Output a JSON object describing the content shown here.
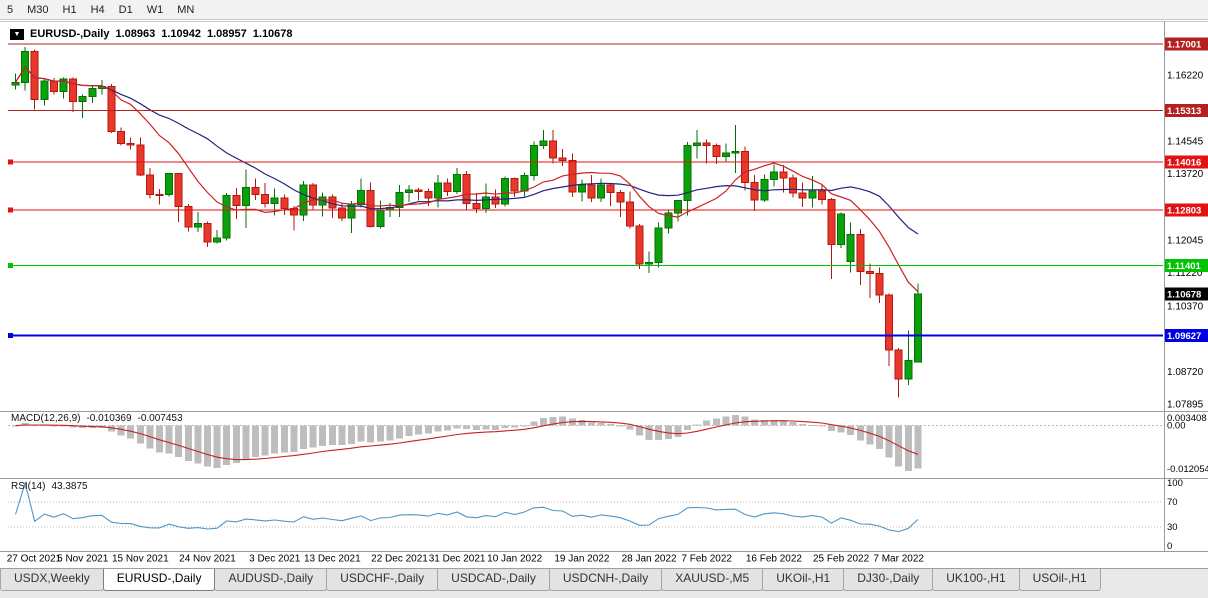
{
  "toolbar": {
    "timeframes": [
      "5",
      "M30",
      "H1",
      "H4",
      "D1",
      "W1",
      "MN"
    ]
  },
  "chart_title": {
    "symbol": "EURUSD-,Daily",
    "open": "1.08963",
    "high": "1.10942",
    "low": "1.08957",
    "close": "1.10678"
  },
  "macd_label": {
    "name": "MACD(12,26,9)",
    "main": "-0.010369",
    "signal": "-0.007453"
  },
  "rsi_label": {
    "name": "RSI(14)",
    "value": "43.3875"
  },
  "tabs": [
    {
      "label": "USDX,Weekly",
      "active": false
    },
    {
      "label": "EURUSD-,Daily",
      "active": true
    },
    {
      "label": "AUDUSD-,Daily",
      "active": false
    },
    {
      "label": "USDCHF-,Daily",
      "active": false
    },
    {
      "label": "USDCAD-,Daily",
      "active": false
    },
    {
      "label": "USDCNH-,Daily",
      "active": false
    },
    {
      "label": "XAUUSD-,M5",
      "active": false
    },
    {
      "label": "UKOil-,H1",
      "active": false
    },
    {
      "label": "DJ30-,Daily",
      "active": false
    },
    {
      "label": "UK100-,H1",
      "active": false
    },
    {
      "label": "USOil-,H1",
      "active": false
    }
  ],
  "chart_data": {
    "type": "candlestick",
    "title": "EURUSD-,Daily",
    "y_axis_range": [
      1.07743,
      1.17406
    ],
    "colors": {
      "up": "#0aa10a",
      "up_stroke": "#056e05",
      "down": "#e8372b",
      "down_stroke": "#b5170c"
    },
    "y_ticks": [
      {
        "text": "1.16220",
        "value": 1.1622
      },
      {
        "text": "1.14545",
        "value": 1.14545
      },
      {
        "text": "1.13720",
        "value": 1.1372
      },
      {
        "text": "1.12045",
        "value": 1.12045
      },
      {
        "text": "1.11220",
        "value": 1.1122
      },
      {
        "text": "1.10370",
        "value": 1.1037
      },
      {
        "text": "1.08720",
        "value": 1.0872
      },
      {
        "text": "1.07895",
        "value": 1.07895
      }
    ],
    "level_lines": [
      {
        "text": "1.17001",
        "value": 1.17001,
        "color": "#b52121",
        "width": 1,
        "marker": false
      },
      {
        "text": "1.15313",
        "value": 1.15313,
        "color": "#b52121",
        "width": 1,
        "marker": false
      },
      {
        "text": "1.14016",
        "value": 1.14016,
        "color": "#e31212",
        "width": 1,
        "marker": true
      },
      {
        "text": "1.12803",
        "value": 1.12803,
        "color": "#e31212",
        "width": 1,
        "marker": true
      },
      {
        "text": "1.11401",
        "value": 1.11401,
        "color": "#00c400",
        "width": 1,
        "marker": true
      },
      {
        "text": "1.09627",
        "value": 1.09627,
        "color": "#0000e0",
        "width": 2,
        "marker": true
      }
    ],
    "current_price": {
      "text": "1.10678",
      "value": 1.10678,
      "color": "#000000"
    },
    "x_ticks": [
      {
        "text": "27 Oct 2021",
        "index": 0
      },
      {
        "text": "5 Nov 2021",
        "index": 7
      },
      {
        "text": "15 Nov 2021",
        "index": 13
      },
      {
        "text": "24 Nov 2021",
        "index": 20
      },
      {
        "text": "3 Dec 2021",
        "index": 27
      },
      {
        "text": "13 Dec 2021",
        "index": 33
      },
      {
        "text": "22 Dec 2021",
        "index": 40
      },
      {
        "text": "31 Dec 2021",
        "index": 46
      },
      {
        "text": "10 Jan 2022",
        "index": 52
      },
      {
        "text": "19 Jan 2022",
        "index": 59
      },
      {
        "text": "28 Jan 2022",
        "index": 66
      },
      {
        "text": "7 Feb 2022",
        "index": 72
      },
      {
        "text": "16 Feb 2022",
        "index": 79
      },
      {
        "text": "25 Feb 2022",
        "index": 86
      },
      {
        "text": "7 Mar 2022",
        "index": 92
      }
    ],
    "overlays": [
      {
        "name": "ma-slow",
        "type": "sma",
        "period": 21,
        "color": "#24247f"
      },
      {
        "name": "ma-fast",
        "type": "sma",
        "period": 10,
        "color": "#cc2222"
      }
    ],
    "macd": {
      "fast": 12,
      "slow": 26,
      "signal_period": 9,
      "histogram_color": "#bdbdbd",
      "signal_color": "#c82020",
      "axis_labels": [
        "0.003408",
        "0.00",
        "-0.012054"
      ]
    },
    "rsi": {
      "period": 14,
      "color": "#4e96c8",
      "axis_labels": [
        "100",
        "70",
        "30",
        "0"
      ],
      "levels": [
        70,
        30
      ]
    },
    "candles": [
      [
        "2021-10-27",
        1.1596,
        1.1626,
        1.1585,
        1.1603
      ],
      [
        "2021-10-28",
        1.1603,
        1.1692,
        1.1582,
        1.1681
      ],
      [
        "2021-10-29",
        1.1681,
        1.1686,
        1.1535,
        1.156
      ],
      [
        "2021-11-01",
        1.156,
        1.161,
        1.1545,
        1.1606
      ],
      [
        "2021-11-02",
        1.1606,
        1.1614,
        1.1573,
        1.158
      ],
      [
        "2021-11-03",
        1.158,
        1.1616,
        1.1562,
        1.1611
      ],
      [
        "2021-11-04",
        1.1611,
        1.1616,
        1.1528,
        1.1555
      ],
      [
        "2021-11-05",
        1.1555,
        1.1573,
        1.1513,
        1.1567
      ],
      [
        "2021-11-08",
        1.1567,
        1.1594,
        1.1551,
        1.1588
      ],
      [
        "2021-11-09",
        1.1588,
        1.1609,
        1.1572,
        1.1593
      ],
      [
        "2021-11-10",
        1.1593,
        1.1599,
        1.1475,
        1.1479
      ],
      [
        "2021-11-11",
        1.1479,
        1.1489,
        1.1443,
        1.1449
      ],
      [
        "2021-11-12",
        1.1449,
        1.1464,
        1.1433,
        1.1445
      ],
      [
        "2021-11-15",
        1.1445,
        1.1464,
        1.1366,
        1.1369
      ],
      [
        "2021-11-16",
        1.1369,
        1.1386,
        1.1309,
        1.132
      ],
      [
        "2021-11-17",
        1.132,
        1.1333,
        1.1294,
        1.1319
      ],
      [
        "2021-11-18",
        1.1319,
        1.1374,
        1.1314,
        1.1372
      ],
      [
        "2021-11-19",
        1.1372,
        1.1374,
        1.125,
        1.1289
      ],
      [
        "2021-11-22",
        1.1289,
        1.1296,
        1.1226,
        1.1237
      ],
      [
        "2021-11-23",
        1.1237,
        1.1275,
        1.1225,
        1.1246
      ],
      [
        "2021-11-24",
        1.1246,
        1.1251,
        1.1186,
        1.1199
      ],
      [
        "2021-11-25",
        1.1199,
        1.123,
        1.1195,
        1.1209
      ],
      [
        "2021-11-26",
        1.1209,
        1.1323,
        1.1203,
        1.1317
      ],
      [
        "2021-11-29",
        1.1317,
        1.1336,
        1.1258,
        1.1292
      ],
      [
        "2021-11-30",
        1.1292,
        1.1383,
        1.1235,
        1.1337
      ],
      [
        "2021-12-01",
        1.1337,
        1.136,
        1.1305,
        1.1319
      ],
      [
        "2021-12-02",
        1.1319,
        1.1348,
        1.1287,
        1.1297
      ],
      [
        "2021-12-03",
        1.1297,
        1.1334,
        1.1266,
        1.1311
      ],
      [
        "2021-12-06",
        1.1311,
        1.132,
        1.1267,
        1.1284
      ],
      [
        "2021-12-07",
        1.1284,
        1.129,
        1.1228,
        1.1267
      ],
      [
        "2021-12-08",
        1.1267,
        1.1354,
        1.1252,
        1.1344
      ],
      [
        "2021-12-09",
        1.1344,
        1.1348,
        1.128,
        1.1293
      ],
      [
        "2021-12-10",
        1.1293,
        1.1324,
        1.1264,
        1.1313
      ],
      [
        "2021-12-13",
        1.1313,
        1.1319,
        1.126,
        1.1285
      ],
      [
        "2021-12-14",
        1.1285,
        1.1298,
        1.1253,
        1.126
      ],
      [
        "2021-12-15",
        1.126,
        1.1303,
        1.1222,
        1.1294
      ],
      [
        "2021-12-16",
        1.1294,
        1.136,
        1.1286,
        1.133
      ],
      [
        "2021-12-17",
        1.133,
        1.135,
        1.1236,
        1.1238
      ],
      [
        "2021-12-20",
        1.1238,
        1.1304,
        1.1234,
        1.128
      ],
      [
        "2021-12-21",
        1.128,
        1.1298,
        1.1262,
        1.1287
      ],
      [
        "2021-12-22",
        1.1287,
        1.1343,
        1.1263,
        1.1325
      ],
      [
        "2021-12-23",
        1.1325,
        1.1344,
        1.13,
        1.1331
      ],
      [
        "2021-12-27",
        1.1331,
        1.1336,
        1.1304,
        1.1327
      ],
      [
        "2021-12-28",
        1.1327,
        1.1334,
        1.129,
        1.131
      ],
      [
        "2021-12-29",
        1.131,
        1.1369,
        1.1286,
        1.1348
      ],
      [
        "2021-12-30",
        1.1348,
        1.136,
        1.1316,
        1.1327
      ],
      [
        "2021-12-31",
        1.1327,
        1.1386,
        1.1321,
        1.137
      ],
      [
        "2022-01-03",
        1.137,
        1.1379,
        1.1279,
        1.1297
      ],
      [
        "2022-01-04",
        1.1297,
        1.1323,
        1.1272,
        1.1284
      ],
      [
        "2022-01-05",
        1.1284,
        1.1347,
        1.1272,
        1.1313
      ],
      [
        "2022-01-06",
        1.1313,
        1.1332,
        1.1285,
        1.1295
      ],
      [
        "2022-01-07",
        1.1295,
        1.1365,
        1.1289,
        1.136
      ],
      [
        "2022-01-10",
        1.136,
        1.1363,
        1.1313,
        1.1328
      ],
      [
        "2022-01-11",
        1.1328,
        1.1375,
        1.1314,
        1.1367
      ],
      [
        "2022-01-12",
        1.1367,
        1.1453,
        1.1355,
        1.1444
      ],
      [
        "2022-01-13",
        1.1444,
        1.1482,
        1.1435,
        1.1455
      ],
      [
        "2022-01-14",
        1.1455,
        1.1483,
        1.1398,
        1.1412
      ],
      [
        "2022-01-17",
        1.1412,
        1.1435,
        1.1391,
        1.1406
      ],
      [
        "2022-01-18",
        1.1406,
        1.1423,
        1.1313,
        1.1326
      ],
      [
        "2022-01-19",
        1.1326,
        1.1358,
        1.1302,
        1.1343
      ],
      [
        "2022-01-20",
        1.1343,
        1.1369,
        1.1301,
        1.131
      ],
      [
        "2022-01-21",
        1.131,
        1.136,
        1.13,
        1.1343
      ],
      [
        "2022-01-24",
        1.1343,
        1.1349,
        1.129,
        1.1325
      ],
      [
        "2022-01-25",
        1.1325,
        1.1331,
        1.1263,
        1.13
      ],
      [
        "2022-01-26",
        1.13,
        1.1327,
        1.1234,
        1.124
      ],
      [
        "2022-01-27",
        1.124,
        1.1245,
        1.1131,
        1.1144
      ],
      [
        "2022-01-28",
        1.1144,
        1.1175,
        1.1121,
        1.1148
      ],
      [
        "2022-01-31",
        1.1148,
        1.1248,
        1.1135,
        1.1235
      ],
      [
        "2022-02-01",
        1.1235,
        1.1279,
        1.1221,
        1.1273
      ],
      [
        "2022-02-02",
        1.1273,
        1.1305,
        1.1251,
        1.1304
      ],
      [
        "2022-02-03",
        1.1304,
        1.1452,
        1.1266,
        1.1443
      ],
      [
        "2022-02-04",
        1.1443,
        1.1483,
        1.1411,
        1.145
      ],
      [
        "2022-02-07",
        1.145,
        1.1458,
        1.1398,
        1.1443
      ],
      [
        "2022-02-08",
        1.1443,
        1.1448,
        1.1396,
        1.1415
      ],
      [
        "2022-02-09",
        1.1415,
        1.1448,
        1.1403,
        1.1424
      ],
      [
        "2022-02-10",
        1.1424,
        1.1495,
        1.1374,
        1.1428
      ],
      [
        "2022-02-11",
        1.1428,
        1.1441,
        1.133,
        1.135
      ],
      [
        "2022-02-14",
        1.135,
        1.1369,
        1.1278,
        1.1305
      ],
      [
        "2022-02-15",
        1.1305,
        1.137,
        1.13,
        1.1358
      ],
      [
        "2022-02-16",
        1.1358,
        1.1395,
        1.134,
        1.1376
      ],
      [
        "2022-02-17",
        1.1376,
        1.1394,
        1.1324,
        1.1361
      ],
      [
        "2022-02-18",
        1.1361,
        1.137,
        1.1312,
        1.1323
      ],
      [
        "2022-02-21",
        1.1323,
        1.135,
        1.1288,
        1.131
      ],
      [
        "2022-02-22",
        1.131,
        1.1366,
        1.1287,
        1.1328
      ],
      [
        "2022-02-23",
        1.1328,
        1.1344,
        1.1294,
        1.1307
      ],
      [
        "2022-02-24",
        1.1307,
        1.131,
        1.1106,
        1.1193
      ],
      [
        "2022-02-25",
        1.1193,
        1.1274,
        1.1184,
        1.127
      ],
      [
        "2022-02-28",
        1.115,
        1.1248,
        1.1122,
        1.1218
      ],
      [
        "2022-03-01",
        1.1218,
        1.1232,
        1.109,
        1.1125
      ],
      [
        "2022-03-02",
        1.1125,
        1.1145,
        1.1058,
        1.112
      ],
      [
        "2022-03-03",
        1.112,
        1.1135,
        1.1045,
        1.1065
      ],
      [
        "2022-03-04",
        1.1065,
        1.1069,
        1.0886,
        1.0926
      ],
      [
        "2022-03-07",
        1.0926,
        1.0931,
        1.0806,
        1.0853
      ],
      [
        "2022-03-08",
        1.0853,
        1.0976,
        1.0838,
        1.09
      ],
      [
        "2022-03-09",
        1.08963,
        1.10942,
        1.08957,
        1.10678
      ]
    ]
  }
}
